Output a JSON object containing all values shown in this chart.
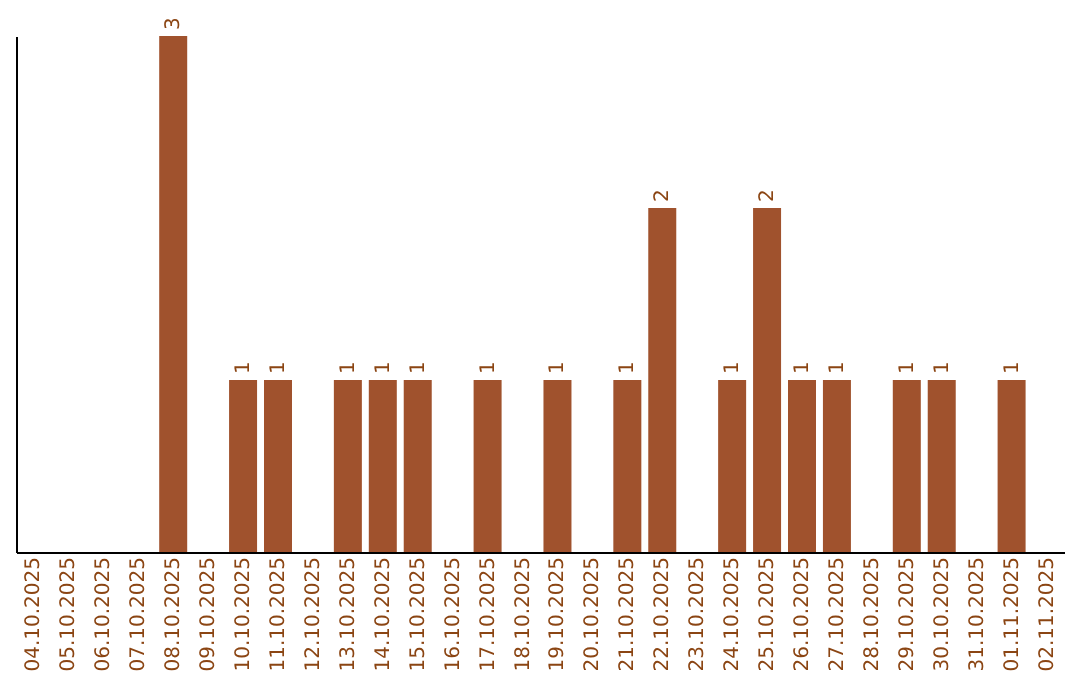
{
  "chart_data": {
    "type": "bar",
    "categories": [
      "04.10.2025",
      "05.10.2025",
      "06.10.2025",
      "07.10.2025",
      "08.10.2025",
      "09.10.2025",
      "10.10.2025",
      "11.10.2025",
      "12.10.2025",
      "13.10.2025",
      "14.10.2025",
      "15.10.2025",
      "16.10.2025",
      "17.10.2025",
      "18.10.2025",
      "19.10.2025",
      "20.10.2025",
      "21.10.2025",
      "22.10.2025",
      "23.10.2025",
      "24.10.2025",
      "25.10.2025",
      "26.10.2025",
      "27.10.2025",
      "28.10.2025",
      "29.10.2025",
      "30.10.2025",
      "31.10.2025",
      "01.11.2025",
      "02.11.2025"
    ],
    "values": [
      0,
      0,
      0,
      0,
      3,
      0,
      1,
      1,
      0,
      1,
      1,
      1,
      0,
      1,
      0,
      1,
      0,
      1,
      2,
      0,
      1,
      2,
      1,
      1,
      0,
      1,
      1,
      0,
      1,
      0
    ],
    "value_labels": [
      null,
      null,
      null,
      null,
      "3",
      null,
      "1",
      "1",
      null,
      "1",
      "1",
      "1",
      null,
      "1",
      null,
      "1",
      null,
      "1",
      "2",
      null,
      "1",
      "2",
      "1",
      "1",
      null,
      "1",
      "1",
      null,
      "1",
      null
    ],
    "color": "#a0522d",
    "grid": false,
    "tick_labels": "x"
  }
}
